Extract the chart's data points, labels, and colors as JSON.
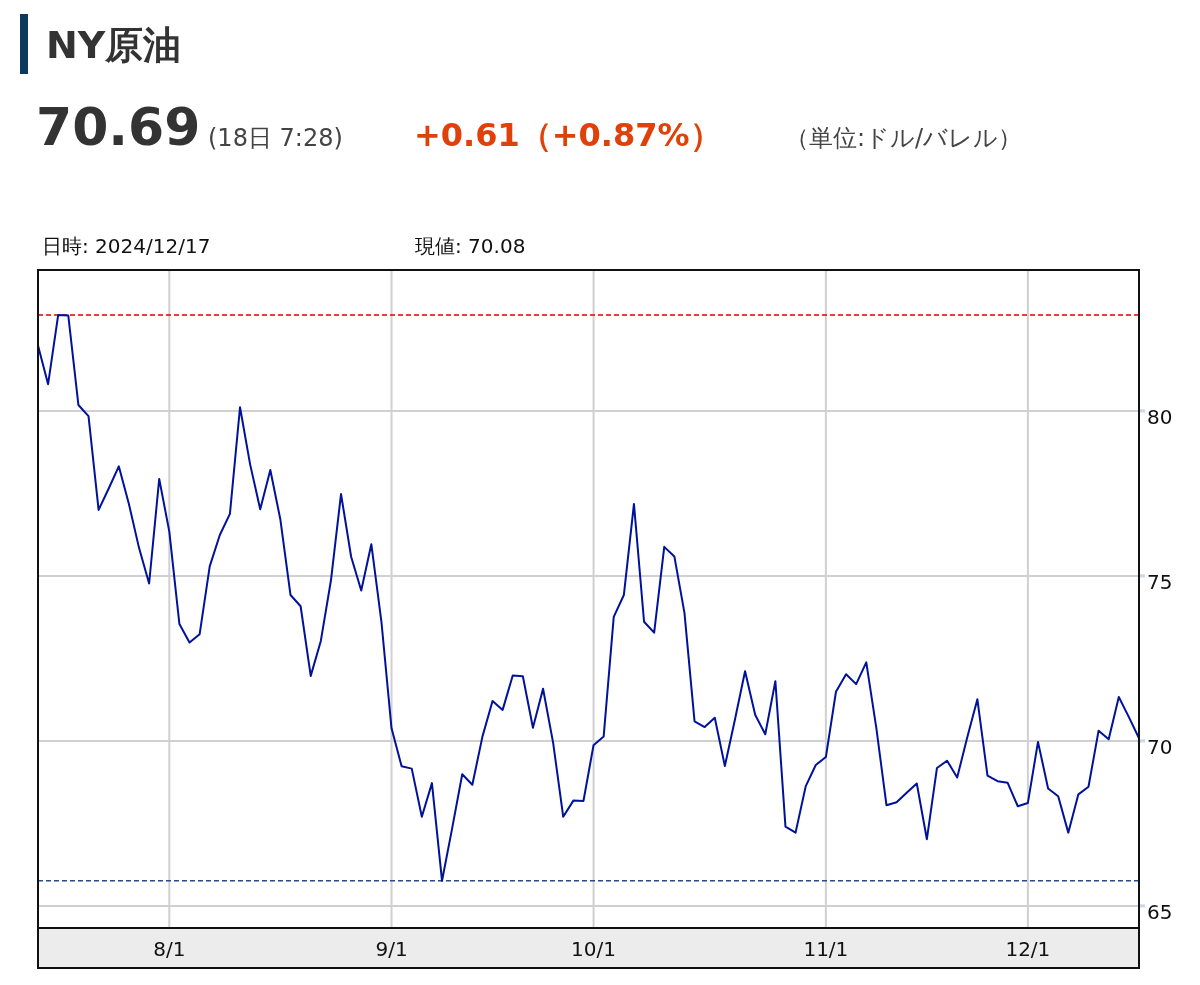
{
  "chart_data": {
    "type": "line",
    "title": "NY原油",
    "subtitle": "70.69",
    "annotations": [
      "(18日 7:28)",
      "+0.61（+0.87%）",
      "（単位:ドル/バレル）",
      "日時: 2024/12/17",
      "現値: 70.08"
    ],
    "categories": [
      null,
      null,
      null,
      null,
      null,
      null,
      null,
      null,
      null,
      null,
      null,
      null,
      null,
      "8/1",
      null,
      null,
      null,
      null,
      null,
      null,
      null,
      null,
      null,
      null,
      null,
      null,
      null,
      null,
      null,
      null,
      null,
      null,
      null,
      null,
      null,
      "9/1",
      null,
      null,
      null,
      null,
      null,
      null,
      null,
      null,
      null,
      null,
      null,
      null,
      null,
      null,
      null,
      null,
      null,
      null,
      null,
      "10/1",
      null,
      null,
      null,
      null,
      null,
      null,
      null,
      null,
      null,
      null,
      null,
      null,
      null,
      null,
      null,
      null,
      null,
      null,
      null,
      null,
      null,
      null,
      "11/1",
      null,
      null,
      null,
      null,
      null,
      null,
      null,
      null,
      null,
      null,
      null,
      null,
      null,
      null,
      null,
      null,
      null,
      null,
      null,
      "12/1",
      null,
      null,
      null,
      null,
      null,
      null,
      null,
      null,
      null,
      null,
      null
    ],
    "series": [
      {
        "color": "#00129a",
        "values": [
          81.98,
          80.81,
          82.91,
          82.89,
          80.18,
          79.84,
          77.0,
          77.65,
          78.32,
          77.18,
          75.85,
          74.77,
          77.94,
          76.34,
          73.54,
          72.98,
          73.23,
          75.29,
          76.24,
          76.88,
          80.11,
          78.38,
          77.02,
          78.21,
          76.7,
          74.42,
          74.08,
          71.97,
          73.03,
          74.86,
          77.48,
          75.58,
          74.56,
          75.96,
          73.61,
          70.38,
          69.23,
          69.16,
          67.7,
          68.72,
          65.76,
          67.35,
          68.99,
          68.67,
          70.13,
          71.21,
          70.94,
          71.98,
          71.96,
          70.4,
          71.58,
          69.94,
          67.7,
          68.19,
          68.18,
          69.87,
          70.13,
          73.76,
          74.42,
          77.18,
          73.61,
          73.28,
          75.88,
          75.59,
          73.88,
          70.59,
          70.42,
          70.7,
          69.24,
          70.65,
          72.11,
          70.79,
          70.2,
          71.81,
          67.4,
          67.22,
          68.62,
          69.27,
          69.51,
          71.49,
          72.02,
          71.72,
          72.38,
          70.38,
          68.05,
          68.14,
          68.43,
          68.71,
          67.02,
          69.18,
          69.4,
          68.89,
          70.11,
          71.26,
          68.95,
          68.78,
          68.73,
          68.02,
          68.12,
          69.97,
          68.56,
          68.32,
          67.22,
          68.38,
          68.61,
          70.31,
          70.05,
          71.33,
          70.72,
          70.08
        ]
      }
    ],
    "ylim": [
      64.33,
      84.27
    ],
    "yticks": [
      65,
      70,
      75,
      80
    ],
    "grid": true,
    "line_style": "solid",
    "marker": "none",
    "ref_lines": [
      {
        "axis": "y",
        "value": 82.91,
        "color": "#e00000",
        "line_style": "dashed"
      },
      {
        "axis": "y",
        "value": 65.76,
        "color": "#2a4a8a",
        "line_style": "dashed"
      }
    ]
  }
}
